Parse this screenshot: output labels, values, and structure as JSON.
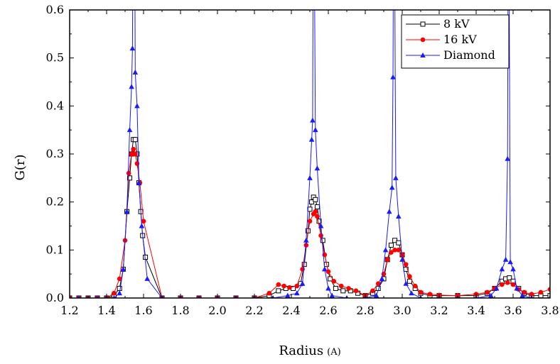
{
  "chart_data": {
    "type": "line",
    "title": "",
    "xlabel": "Radius",
    "xlabel_unit": "(A)",
    "ylabel": "G(r)",
    "xlim": [
      1.2,
      3.8
    ],
    "ylim": [
      0.0,
      0.6
    ],
    "x_ticks": [
      "1.2",
      "1.4",
      "1.6",
      "1.8",
      "2.0",
      "2.2",
      "2.4",
      "2.6",
      "2.8",
      "3.0",
      "3.2",
      "3.4",
      "3.6",
      "3.8"
    ],
    "y_ticks": [
      "0.0",
      "0.1",
      "0.2",
      "0.3",
      "0.4",
      "0.5",
      "0.6"
    ],
    "grid": false,
    "legend_position": "top-right",
    "series": [
      {
        "name": "8 kV",
        "color": "#000000",
        "marker": "open-square",
        "points": [
          [
            1.2,
            0.0
          ],
          [
            1.25,
            0.0
          ],
          [
            1.3,
            0.0
          ],
          [
            1.35,
            0.0
          ],
          [
            1.4,
            0.0
          ],
          [
            1.44,
            0.005
          ],
          [
            1.47,
            0.02
          ],
          [
            1.49,
            0.06
          ],
          [
            1.51,
            0.18
          ],
          [
            1.525,
            0.25
          ],
          [
            1.535,
            0.3
          ],
          [
            1.545,
            0.33
          ],
          [
            1.555,
            0.33
          ],
          [
            1.565,
            0.3
          ],
          [
            1.575,
            0.24
          ],
          [
            1.585,
            0.18
          ],
          [
            1.595,
            0.13
          ],
          [
            1.61,
            0.085
          ],
          [
            1.7,
            0.0
          ],
          [
            1.8,
            0.0
          ],
          [
            1.9,
            0.0
          ],
          [
            2.0,
            0.0
          ],
          [
            2.1,
            0.0
          ],
          [
            2.2,
            0.0
          ],
          [
            2.28,
            0.005
          ],
          [
            2.33,
            0.015
          ],
          [
            2.37,
            0.02
          ],
          [
            2.41,
            0.02
          ],
          [
            2.45,
            0.03
          ],
          [
            2.47,
            0.07
          ],
          [
            2.49,
            0.14
          ],
          [
            2.5,
            0.185
          ],
          [
            2.51,
            0.2
          ],
          [
            2.52,
            0.21
          ],
          [
            2.53,
            0.205
          ],
          [
            2.54,
            0.19
          ],
          [
            2.55,
            0.16
          ],
          [
            2.57,
            0.12
          ],
          [
            2.59,
            0.07
          ],
          [
            2.61,
            0.04
          ],
          [
            2.64,
            0.02
          ],
          [
            2.68,
            0.015
          ],
          [
            2.72,
            0.015
          ],
          [
            2.76,
            0.01
          ],
          [
            2.8,
            0.005
          ],
          [
            2.84,
            0.01
          ],
          [
            2.87,
            0.02
          ],
          [
            2.9,
            0.04
          ],
          [
            2.92,
            0.08
          ],
          [
            2.94,
            0.11
          ],
          [
            2.96,
            0.12
          ],
          [
            2.98,
            0.115
          ],
          [
            3.0,
            0.09
          ],
          [
            3.02,
            0.06
          ],
          [
            3.04,
            0.035
          ],
          [
            3.07,
            0.02
          ],
          [
            3.1,
            0.01
          ],
          [
            3.15,
            0.005
          ],
          [
            3.2,
            0.005
          ],
          [
            3.3,
            0.005
          ],
          [
            3.4,
            0.005
          ],
          [
            3.46,
            0.01
          ],
          [
            3.5,
            0.02
          ],
          [
            3.54,
            0.035
          ],
          [
            3.56,
            0.04
          ],
          [
            3.58,
            0.042
          ],
          [
            3.6,
            0.035
          ],
          [
            3.63,
            0.02
          ],
          [
            3.66,
            0.01
          ],
          [
            3.7,
            0.005
          ],
          [
            3.75,
            0.005
          ],
          [
            3.8,
            0.005
          ]
        ]
      },
      {
        "name": "16 kV",
        "color": "#ff0000",
        "marker": "filled-circle",
        "points": [
          [
            1.2,
            0.0
          ],
          [
            1.25,
            0.0
          ],
          [
            1.3,
            0.0
          ],
          [
            1.35,
            0.0
          ],
          [
            1.4,
            0.0
          ],
          [
            1.44,
            0.01
          ],
          [
            1.47,
            0.04
          ],
          [
            1.5,
            0.12
          ],
          [
            1.52,
            0.26
          ],
          [
            1.535,
            0.3
          ],
          [
            1.545,
            0.31
          ],
          [
            1.555,
            0.3
          ],
          [
            1.565,
            0.28
          ],
          [
            1.58,
            0.24
          ],
          [
            1.6,
            0.16
          ],
          [
            1.7,
            0.0
          ],
          [
            1.8,
            0.0
          ],
          [
            1.9,
            0.0
          ],
          [
            2.0,
            0.0
          ],
          [
            2.1,
            0.0
          ],
          [
            2.2,
            0.0
          ],
          [
            2.28,
            0.01
          ],
          [
            2.33,
            0.028
          ],
          [
            2.36,
            0.025
          ],
          [
            2.39,
            0.022
          ],
          [
            2.43,
            0.025
          ],
          [
            2.46,
            0.06
          ],
          [
            2.48,
            0.11
          ],
          [
            2.5,
            0.16
          ],
          [
            2.52,
            0.175
          ],
          [
            2.53,
            0.18
          ],
          [
            2.54,
            0.17
          ],
          [
            2.56,
            0.13
          ],
          [
            2.58,
            0.09
          ],
          [
            2.6,
            0.055
          ],
          [
            2.63,
            0.035
          ],
          [
            2.67,
            0.025
          ],
          [
            2.71,
            0.02
          ],
          [
            2.75,
            0.015
          ],
          [
            2.8,
            0.005
          ],
          [
            2.84,
            0.015
          ],
          [
            2.87,
            0.03
          ],
          [
            2.9,
            0.05
          ],
          [
            2.92,
            0.08
          ],
          [
            2.94,
            0.095
          ],
          [
            2.96,
            0.1
          ],
          [
            2.98,
            0.1
          ],
          [
            3.0,
            0.09
          ],
          [
            3.02,
            0.07
          ],
          [
            3.04,
            0.045
          ],
          [
            3.07,
            0.025
          ],
          [
            3.1,
            0.012
          ],
          [
            3.15,
            0.008
          ],
          [
            3.2,
            0.006
          ],
          [
            3.3,
            0.005
          ],
          [
            3.4,
            0.008
          ],
          [
            3.46,
            0.012
          ],
          [
            3.5,
            0.02
          ],
          [
            3.54,
            0.028
          ],
          [
            3.57,
            0.032
          ],
          [
            3.6,
            0.028
          ],
          [
            3.63,
            0.018
          ],
          [
            3.66,
            0.012
          ],
          [
            3.7,
            0.008
          ],
          [
            3.75,
            0.012
          ],
          [
            3.8,
            0.018
          ]
        ]
      },
      {
        "name": "Diamond",
        "color": "#1a1aff",
        "marker": "filled-triangle",
        "points": [
          [
            1.2,
            0.0
          ],
          [
            1.25,
            0.0
          ],
          [
            1.3,
            0.0
          ],
          [
            1.35,
            0.0
          ],
          [
            1.4,
            0.0
          ],
          [
            1.44,
            0.0
          ],
          [
            1.47,
            0.01
          ],
          [
            1.49,
            0.06
          ],
          [
            1.51,
            0.18
          ],
          [
            1.525,
            0.35
          ],
          [
            1.535,
            0.44
          ],
          [
            1.54,
            0.52
          ],
          [
            1.545,
            1.0
          ],
          [
            1.55,
            1.0
          ],
          [
            1.555,
            0.47
          ],
          [
            1.565,
            0.4
          ],
          [
            1.575,
            0.24
          ],
          [
            1.59,
            0.15
          ],
          [
            1.62,
            0.04
          ],
          [
            1.7,
            0.0
          ],
          [
            1.8,
            0.0
          ],
          [
            1.9,
            0.0
          ],
          [
            2.0,
            0.0
          ],
          [
            2.1,
            0.0
          ],
          [
            2.2,
            0.0
          ],
          [
            2.3,
            0.0
          ],
          [
            2.38,
            0.005
          ],
          [
            2.43,
            0.01
          ],
          [
            2.46,
            0.03
          ],
          [
            2.48,
            0.12
          ],
          [
            2.5,
            0.25
          ],
          [
            2.51,
            0.33
          ],
          [
            2.515,
            0.37
          ],
          [
            2.52,
            1.0
          ],
          [
            2.53,
            0.35
          ],
          [
            2.54,
            0.27
          ],
          [
            2.56,
            0.15
          ],
          [
            2.58,
            0.06
          ],
          [
            2.6,
            0.02
          ],
          [
            2.62,
            0.005
          ],
          [
            2.7,
            0.0
          ],
          [
            2.8,
            0.0
          ],
          [
            2.86,
            0.005
          ],
          [
            2.89,
            0.04
          ],
          [
            2.91,
            0.1
          ],
          [
            2.93,
            0.18
          ],
          [
            2.945,
            0.23
          ],
          [
            2.95,
            0.46
          ],
          [
            2.955,
            1.0
          ],
          [
            2.965,
            0.25
          ],
          [
            2.98,
            0.17
          ],
          [
            3.0,
            0.08
          ],
          [
            3.02,
            0.03
          ],
          [
            3.05,
            0.01
          ],
          [
            3.1,
            0.0
          ],
          [
            3.2,
            0.0
          ],
          [
            3.3,
            0.0
          ],
          [
            3.4,
            0.0
          ],
          [
            3.48,
            0.005
          ],
          [
            3.51,
            0.02
          ],
          [
            3.54,
            0.06
          ],
          [
            3.56,
            0.08
          ],
          [
            3.57,
            0.29
          ],
          [
            3.575,
            1.0
          ],
          [
            3.585,
            0.075
          ],
          [
            3.6,
            0.06
          ],
          [
            3.62,
            0.02
          ],
          [
            3.65,
            0.005
          ],
          [
            3.7,
            0.0
          ],
          [
            3.8,
            0.0
          ]
        ]
      }
    ]
  }
}
